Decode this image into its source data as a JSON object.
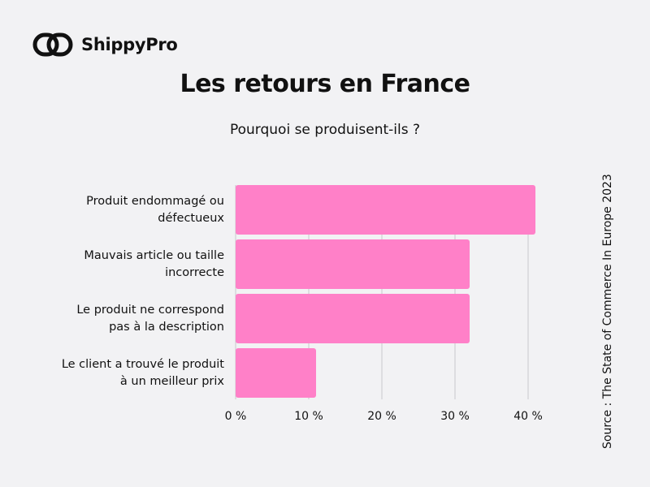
{
  "brand": {
    "name": "ShippyPro"
  },
  "source": "Source : The State of Commerce In Europe 2023",
  "colors": {
    "bar": "#ff80c8",
    "grid": "#c8c8cc",
    "background": "#f2f2f4"
  },
  "chart_data": {
    "type": "bar",
    "orientation": "horizontal",
    "title": "Les retours en France",
    "subtitle": "Pourquoi se produisent-ils ?",
    "categories": [
      [
        "Produit endommagé ou",
        "défectueux"
      ],
      [
        "Mauvais article ou taille",
        "incorrecte"
      ],
      [
        "Le produit ne correspond",
        "pas à la description"
      ],
      [
        "Le client a trouvé le produit",
        "à un meilleur prix"
      ]
    ],
    "values": [
      41,
      32,
      32,
      11
    ],
    "unit": "%",
    "xlim": [
      0,
      40
    ],
    "xticks": [
      "0 %",
      "10 %",
      "20 %",
      "30 %",
      "40 %"
    ],
    "grid": true,
    "legend": "none"
  }
}
